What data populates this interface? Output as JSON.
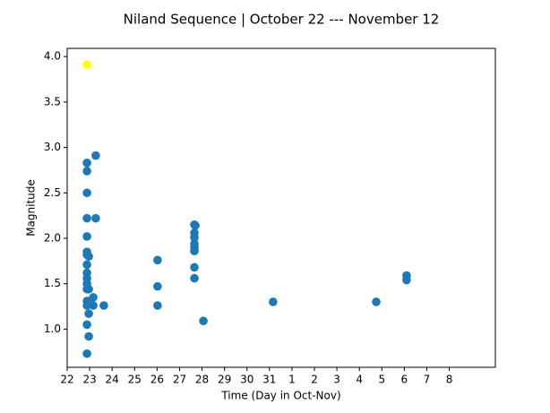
{
  "chart_data": {
    "type": "scatter",
    "title": "Niland Sequence | October 22 --- November 12",
    "x_label": "Time (Day in Oct-Nov)",
    "y_label": "Magnitude",
    "xlim": [
      22,
      41.05
    ],
    "ylim": [
      0.58,
      4.09
    ],
    "xticks": [
      22,
      23,
      24,
      25,
      26,
      27,
      28,
      29,
      30,
      31,
      {
        "value": 32,
        "label": "1"
      },
      {
        "value": 33,
        "label": "2"
      },
      {
        "value": 34,
        "label": "3"
      },
      {
        "value": 35,
        "label": "4"
      },
      {
        "value": 36,
        "label": "5"
      },
      {
        "value": 37,
        "label": "6"
      },
      {
        "value": 38,
        "label": "7"
      },
      {
        "value": 39,
        "label": "8"
      }
    ],
    "yticks": [
      {
        "value": 1,
        "label": "1.0"
      },
      1.5,
      {
        "value": 2,
        "label": "2.0"
      },
      2.5,
      {
        "value": 3,
        "label": "3.0"
      },
      3.5,
      {
        "value": 4,
        "label": "4.0"
      }
    ],
    "series": [
      {
        "color": "#1f77b4",
        "x": [
          22.88,
          22.88,
          22.88,
          22.88,
          22.88,
          22.88,
          22.88,
          22.88,
          22.88,
          22.88,
          22.88,
          22.88,
          22.88,
          22.88,
          22.88,
          22.88,
          22.96,
          22.96,
          22.96,
          22.96,
          23.16,
          23.16,
          23.27,
          23.27,
          23.63,
          26.02,
          26.02,
          26.02,
          27.66,
          27.66,
          27.66,
          27.66,
          27.66,
          27.66,
          27.66,
          27.66,
          27.7,
          28.06,
          31.16,
          35.75,
          37.1,
          37.1
        ],
        "y": [
          2.83,
          2.74,
          2.5,
          2.22,
          2.02,
          1.85,
          1.82,
          1.71,
          1.62,
          1.56,
          1.5,
          1.44,
          1.31,
          1.26,
          1.05,
          0.73,
          1.8,
          1.44,
          1.17,
          0.92,
          1.35,
          1.26,
          2.91,
          2.22,
          1.26,
          1.76,
          1.47,
          1.26,
          2.15,
          2.06,
          2.01,
          1.94,
          1.9,
          1.86,
          1.68,
          1.56,
          2.14,
          1.09,
          1.3,
          1.3,
          1.59,
          1.54
        ]
      },
      {
        "color": "#ffff00",
        "x": [
          22.88
        ],
        "y": [
          3.91
        ]
      }
    ]
  }
}
